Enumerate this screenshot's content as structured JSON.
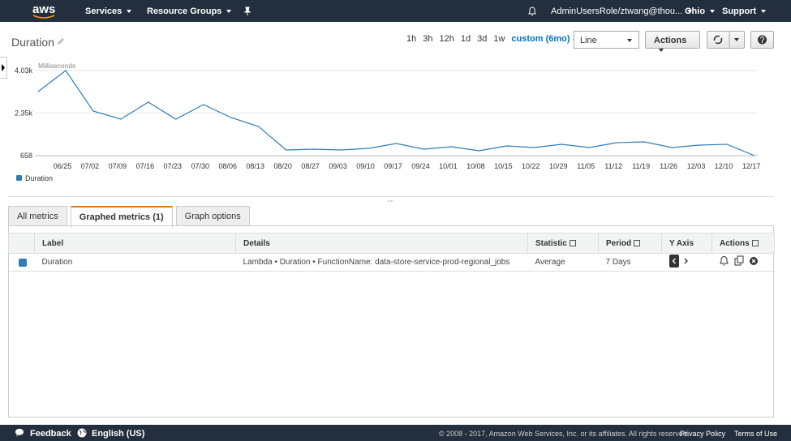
{
  "nav": {
    "logo": "aws",
    "services": "Services",
    "resource_groups": "Resource Groups",
    "account": "AdminUsersRole/ztwang@thou...",
    "region": "Ohio",
    "support": "Support"
  },
  "toolbar": {
    "title": "Duration",
    "ranges": [
      "1h",
      "3h",
      "12h",
      "1d",
      "3d",
      "1w",
      "custom (6mo)"
    ],
    "view": "Line",
    "actions": "Actions"
  },
  "chart_data": {
    "type": "line",
    "y_label": "Milliseconds",
    "categories": [
      null,
      "06/25",
      "07/02",
      "07/09",
      "07/16",
      "07/23",
      "07/30",
      "08/06",
      "08/13",
      "08/20",
      "08/27",
      "09/03",
      "09/10",
      "09/17",
      "09/24",
      "10/01",
      "10/08",
      "10/15",
      "10/22",
      "10/29",
      "11/05",
      "11/12",
      "11/19",
      "11/26",
      "12/03",
      "12/10",
      "12/17"
    ],
    "series": [
      {
        "name": "Duration",
        "color": "#2e7db8",
        "values": [
          3195,
          4030,
          2424,
          2103,
          2777,
          2103,
          2681,
          2167,
          1814,
          883,
          915,
          883,
          947,
          1140,
          915,
          1011,
          851,
          1043,
          979,
          1108,
          979,
          1172,
          1204,
          979,
          1075,
          1108,
          658
        ]
      }
    ],
    "ylim": [
      658,
      4030
    ],
    "yticks": [
      {
        "value": 4030,
        "label": "4.03k"
      },
      {
        "value": 2350,
        "label": "2.35k"
      },
      658
    ],
    "grid": true,
    "legend": "bottom-left"
  },
  "tabs": [
    "All metrics",
    "Graphed metrics (1)",
    "Graph options"
  ],
  "table": {
    "headers": [
      "Label",
      "Details",
      "Statistic",
      "Period",
      "Y Axis",
      "Actions"
    ],
    "rows": [
      [
        "Duration",
        "Lambda • Duration • FunctionName: data-store-service-prod-regional_jobs",
        "Average",
        "7 Days"
      ]
    ]
  },
  "footer": {
    "feedback": "Feedback",
    "language": "English (US)",
    "copyright": "© 2008 - 2017, Amazon Web Services, Inc. or its affiliates. All rights reserved.",
    "privacy": "Privacy Policy",
    "terms": "Terms of Use"
  }
}
